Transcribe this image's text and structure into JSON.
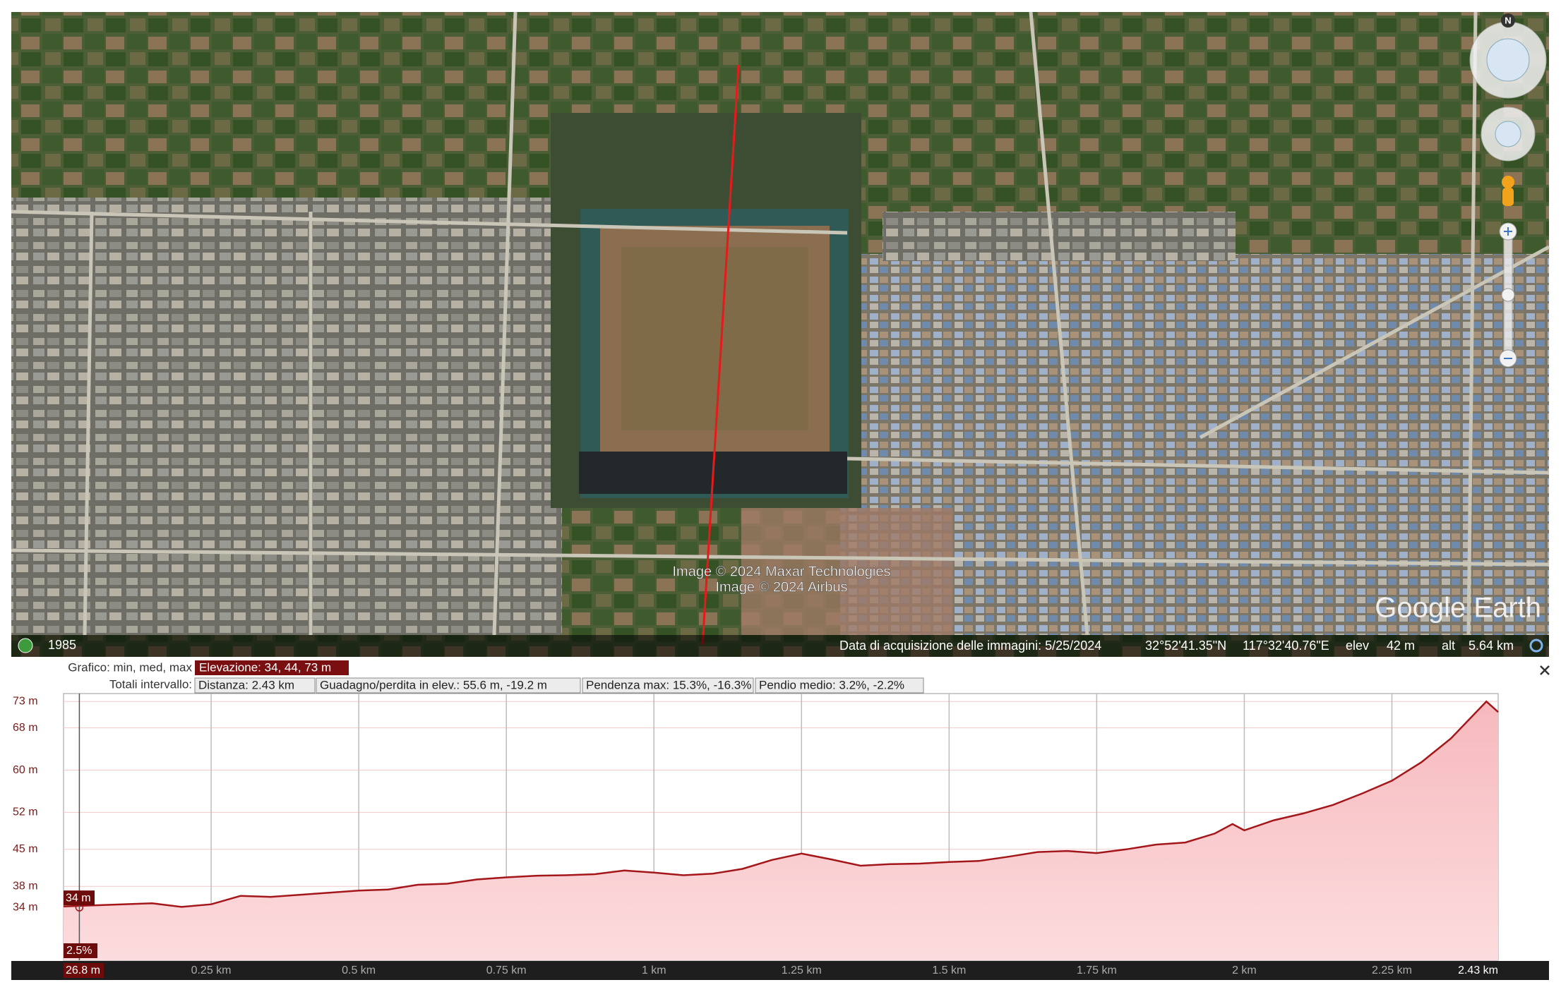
{
  "map": {
    "compass": "N",
    "attribution": [
      "Image © 2024 Maxar Technologies",
      "Image © 2024 Airbus"
    ],
    "brand": "Google Earth",
    "status": {
      "year": "1985",
      "acquisition": "Data di acquisizione delle immagini: 5/25/2024",
      "lat": "32°52'41.35\"N",
      "lon": "117°32'40.76\"E",
      "elev_label": "elev",
      "elev": "42 m",
      "alt_label": "alt",
      "alt": "5.64 km"
    }
  },
  "profile_header": {
    "row1_label": "Grafico: min, med, max",
    "elevation": "Elevazione: 34, 44, 73 m",
    "row2_label": "Totali intervallo:",
    "distance": "Distanza: 2.43 km",
    "gain_loss": "Guadagno/perdita in elev.: 55.6 m, -19.2 m",
    "max_slope": "Pendenza max: 15.3%, -16.3%",
    "avg_slope": "Pendio medio: 3.2%, -2.2%"
  },
  "chart_data": {
    "type": "area",
    "x": [
      0,
      0.05,
      0.1,
      0.15,
      0.2,
      0.25,
      0.3,
      0.35,
      0.4,
      0.45,
      0.5,
      0.55,
      0.6,
      0.65,
      0.7,
      0.75,
      0.8,
      0.85,
      0.9,
      0.95,
      1.0,
      1.05,
      1.1,
      1.15,
      1.2,
      1.25,
      1.3,
      1.35,
      1.4,
      1.45,
      1.5,
      1.55,
      1.6,
      1.65,
      1.7,
      1.75,
      1.8,
      1.85,
      1.9,
      1.95,
      1.98,
      2.0,
      2.05,
      2.1,
      2.15,
      2.2,
      2.25,
      2.3,
      2.35,
      2.41,
      2.43
    ],
    "values": [
      34.2,
      34.4,
      34.6,
      34.8,
      34.1,
      34.6,
      36.2,
      36.0,
      36.4,
      36.8,
      37.2,
      37.4,
      38.3,
      38.5,
      39.3,
      39.7,
      40.0,
      40.1,
      40.3,
      41.0,
      40.6,
      40.1,
      40.4,
      41.3,
      43.0,
      44.2,
      43.1,
      41.9,
      42.2,
      42.3,
      42.6,
      42.8,
      43.6,
      44.5,
      44.7,
      44.3,
      45.0,
      45.9,
      46.3,
      48.0,
      49.8,
      48.6,
      50.5,
      51.8,
      53.4,
      55.6,
      58.0,
      61.5,
      66.0,
      73.0,
      71.0
    ],
    "color": "#a3161a",
    "xlim": [
      0,
      2.43
    ],
    "ylim": [
      24,
      74.5
    ],
    "xticks": [
      {
        "value": 0.25,
        "label": "0.25 km"
      },
      {
        "value": 0.5,
        "label": "0.5 km"
      },
      {
        "value": 0.75,
        "label": "0.75 km"
      },
      {
        "value": 1,
        "label": "1 km"
      },
      {
        "value": 1.25,
        "label": "1.25 km"
      },
      {
        "value": 1.5,
        "label": "1.5 km"
      },
      {
        "value": 1.75,
        "label": "1.75 km"
      },
      {
        "value": 2,
        "label": "2 km"
      },
      {
        "value": 2.25,
        "label": "2.25 km"
      },
      {
        "value": 2.43,
        "label": "2.43 km"
      }
    ],
    "yticks": [
      {
        "value": 34,
        "label": "34 m"
      },
      {
        "value": 38,
        "label": "38 m"
      },
      {
        "value": 45,
        "label": "45 m"
      },
      {
        "value": 52,
        "label": "52 m"
      },
      {
        "value": 60,
        "label": "60 m"
      },
      {
        "value": 68,
        "label": "68 m"
      },
      {
        "value": 73,
        "label": "73 m"
      }
    ],
    "grid": true,
    "cursor": {
      "x": {
        "value": 0.0268,
        "label": "26.8 m"
      },
      "elevation": {
        "value": 34,
        "label": "34 m"
      },
      "slope": "2.5%"
    }
  }
}
